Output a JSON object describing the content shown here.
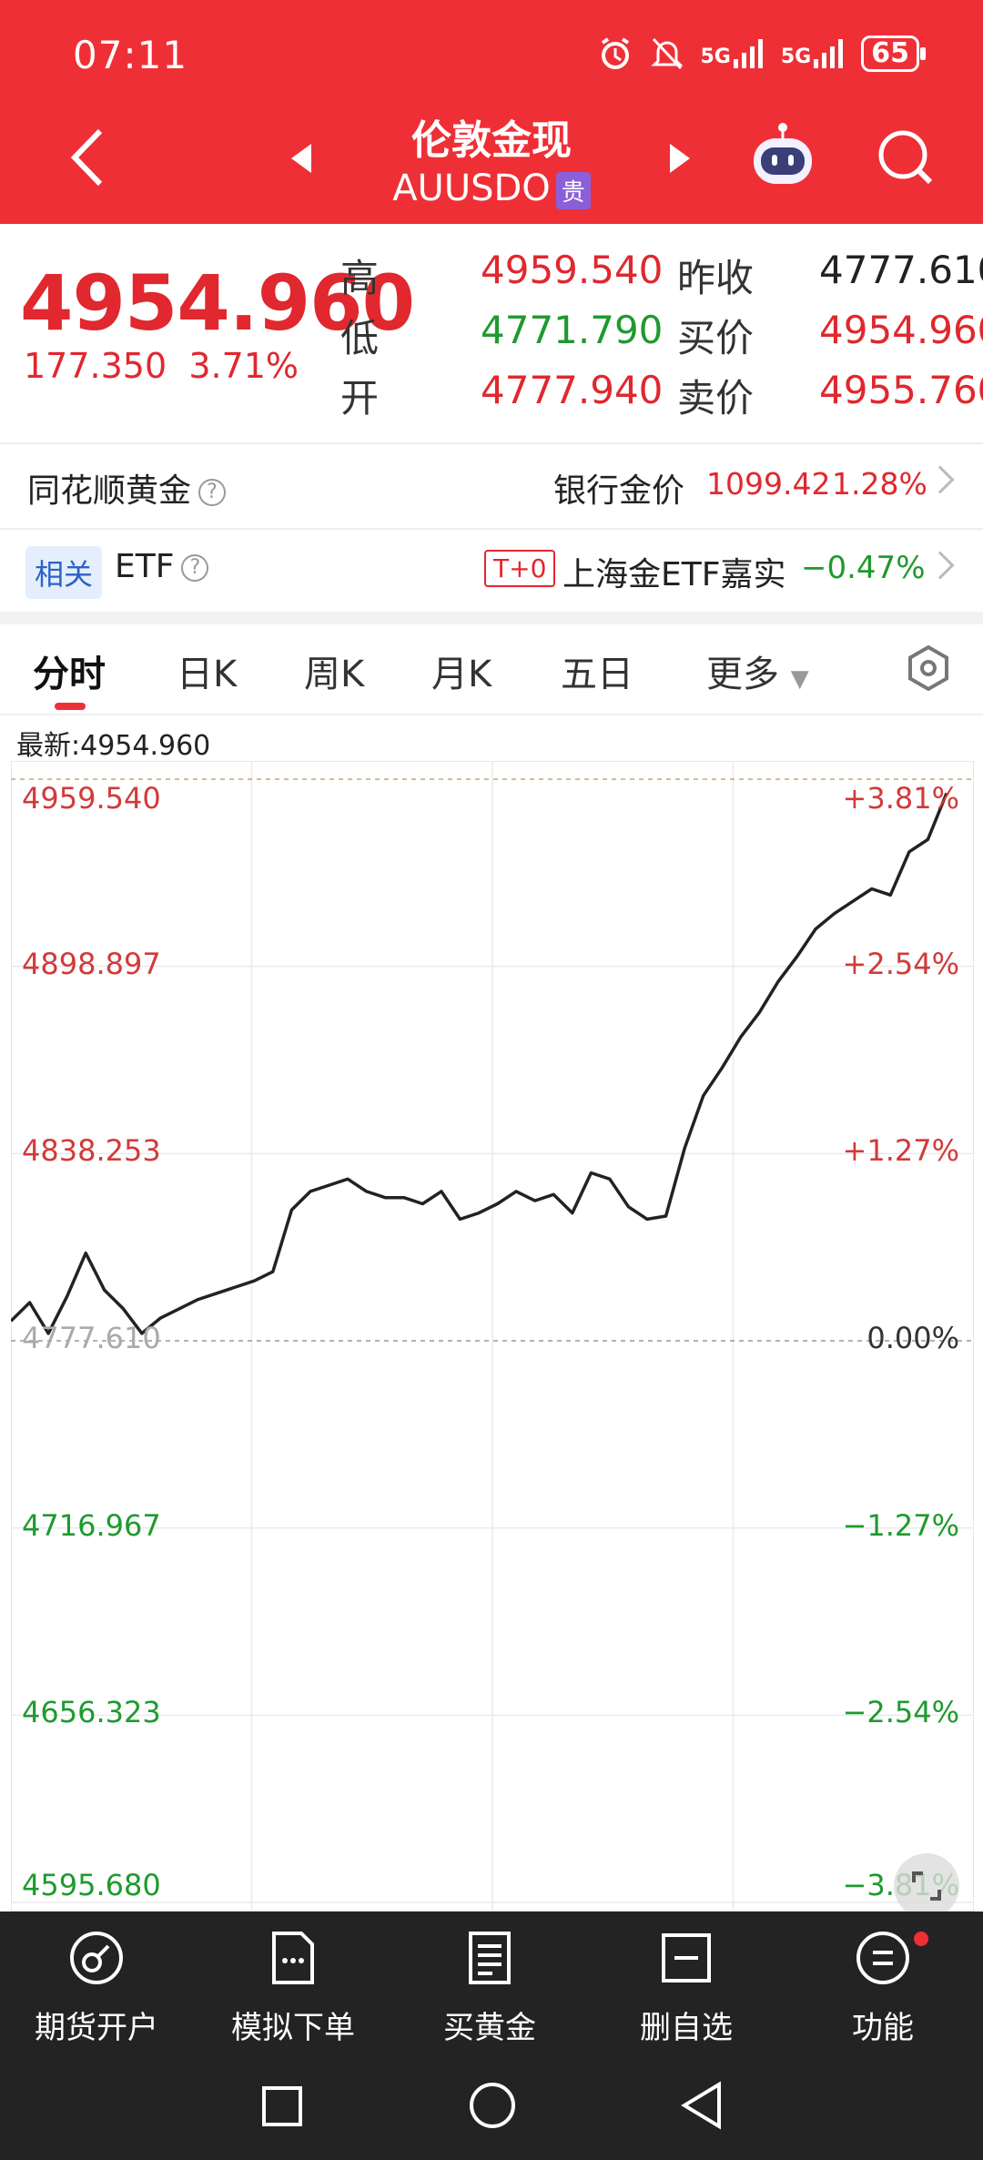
{
  "status": {
    "time": "07:11",
    "battery": "65",
    "signal1": "5G",
    "signal2": "5G"
  },
  "header": {
    "title": "伦敦金现",
    "code": "AUUSDO",
    "tag": "贵"
  },
  "quote": {
    "price": "4954.960",
    "change": "177.350",
    "change_pct": "3.71%",
    "high_label": "高",
    "high": "4959.540",
    "low_label": "低",
    "low": "4771.790",
    "open_label": "开",
    "open": "4777.940",
    "prev_close_label": "昨收",
    "prev_close": "4777.610",
    "bid_label": "买价",
    "bid": "4954.960",
    "ask_label": "卖价",
    "ask": "4955.760"
  },
  "info": {
    "gold_label": "同花顺黄金",
    "bank_label": "银行金价",
    "bank_price": "1099.42",
    "bank_pct": "1.28%",
    "related_tag": "相关",
    "etf_label": "ETF",
    "t0_tag": "T+0",
    "etf_name": "上海金ETF嘉实",
    "etf_pct": "−0.47%"
  },
  "tabs": [
    "分时",
    "日K",
    "周K",
    "月K",
    "五日",
    "更多"
  ],
  "latest": "最新:4954.960",
  "chart_data": {
    "type": "line",
    "title": "",
    "prev_close": 4777.61,
    "ylim": [
      4595.68,
      4959.54
    ],
    "y_ticks": [
      "4959.540",
      "4898.897",
      "4838.253",
      "4777.610",
      "4716.967",
      "4656.323",
      "4595.680"
    ],
    "pct_ticks": [
      "+3.81%",
      "+2.54%",
      "+1.27%",
      "0.00%",
      "−1.27%",
      "−2.54%",
      "−3.81%"
    ],
    "x": [
      0,
      2,
      4,
      6,
      8,
      10,
      12,
      14,
      16,
      18,
      20,
      22,
      24,
      26,
      28,
      30,
      32,
      34,
      36,
      38,
      40,
      42,
      44,
      46,
      48,
      50,
      52,
      54,
      56,
      58,
      60,
      62,
      64,
      66,
      68,
      70,
      72,
      74,
      76,
      78,
      80,
      82,
      84,
      86,
      88,
      90,
      92,
      94,
      96,
      98,
      100
    ],
    "values": [
      4784,
      4790,
      4780,
      4792,
      4806,
      4794,
      4788,
      4780,
      4785,
      4788,
      4791,
      4793,
      4795,
      4797,
      4800,
      4820,
      4826,
      4828,
      4830,
      4826,
      4824,
      4824,
      4822,
      4826,
      4817,
      4819,
      4822,
      4826,
      4823,
      4825,
      4819,
      4832,
      4830,
      4821,
      4817,
      4818,
      4840,
      4857,
      4866,
      4876,
      4884,
      4894,
      4902,
      4911,
      4916,
      4920,
      4924,
      4922,
      4936,
      4940,
      4955
    ]
  },
  "nav": [
    "期货开户",
    "模拟下单",
    "买黄金",
    "删自选",
    "功能"
  ]
}
